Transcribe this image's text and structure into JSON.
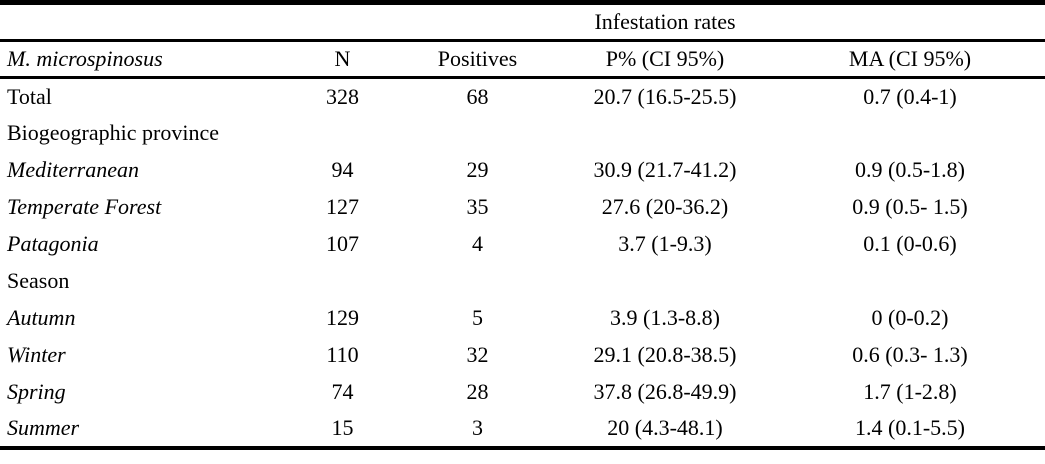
{
  "table": {
    "spanner": "Infestation rates",
    "header": {
      "col1": "M. microspinosus",
      "col2": "N",
      "col3": "Positives",
      "col4": "P% (CI 95%)",
      "col5": "MA (CI 95%)"
    },
    "rows": [
      {
        "label": "Total",
        "n": "328",
        "positives": "68",
        "p": "20.7 (16.5-25.5)",
        "ma": "0.7 (0.4-1)"
      },
      {
        "label": "Biogeographic province",
        "n": "",
        "positives": "",
        "p": "",
        "ma": ""
      },
      {
        "label": "Mediterranean",
        "n": "94",
        "positives": "29",
        "p": "30.9 (21.7-41.2)",
        "ma": "0.9 (0.5-1.8)"
      },
      {
        "label": "Temperate Forest",
        "n": "127",
        "positives": "35",
        "p": "27.6 (20-36.2)",
        "ma": "0.9 (0.5- 1.5)"
      },
      {
        "label": "Patagonia",
        "n": "107",
        "positives": "4",
        "p": "3.7 (1-9.3)",
        "ma": "0.1 (0-0.6)"
      },
      {
        "label": "Season",
        "n": "",
        "positives": "",
        "p": "",
        "ma": ""
      },
      {
        "label": "Autumn",
        "n": "129",
        "positives": "5",
        "p": "3.9 (1.3-8.8)",
        "ma": "0 (0-0.2)"
      },
      {
        "label": "Winter",
        "n": "110",
        "positives": "32",
        "p": "29.1 (20.8-38.5)",
        "ma": "0.6 (0.3- 1.3)"
      },
      {
        "label": "Spring",
        "n": "74",
        "positives": "28",
        "p": "37.8 (26.8-49.9)",
        "ma": "1.7 (1-2.8)"
      },
      {
        "label": "Summer",
        "n": "15",
        "positives": "3",
        "p": "20 (4.3-48.1)",
        "ma": "1.4 (0.1-5.5)"
      }
    ],
    "colors": {
      "rule": "#000000",
      "text": "#000000",
      "background": "#ffffff"
    }
  }
}
